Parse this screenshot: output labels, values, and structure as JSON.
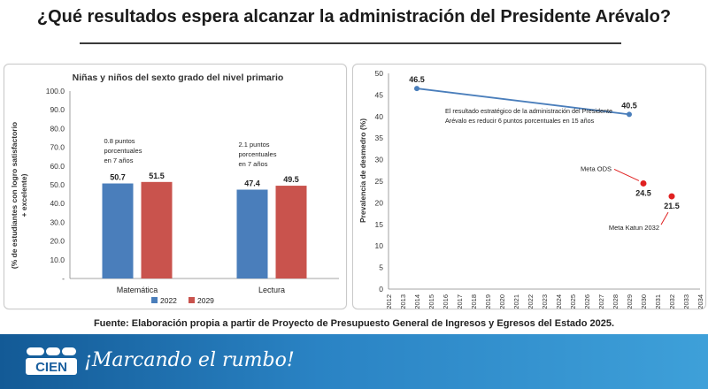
{
  "page": {
    "title": "¿Qué resultados espera alcanzar la administración del Presidente Arévalo?"
  },
  "source": "Fuente: Elaboración propia a partir de Proyecto de Presupuesto General de Ingresos y Egresos del Estado 2025.",
  "footer": {
    "logo_text": "CIEN",
    "slogan": "¡Marcando el rumbo!"
  },
  "chart_data": [
    {
      "type": "bar",
      "title": "Niñas y niños del sexto grado del nivel primario",
      "ylabel": "(% de estudiantes con logro satisfactorio + excelente)",
      "xlabel": "",
      "categories": [
        "Matemática",
        "Lectura"
      ],
      "series": [
        {
          "name": "2022",
          "color": "#4a7ebb",
          "values": [
            50.7,
            47.4
          ]
        },
        {
          "name": "2029",
          "color": "#c9534d",
          "values": [
            51.5,
            49.5
          ]
        }
      ],
      "ylim": [
        0,
        100
      ],
      "yticks": [
        "-",
        "10.0",
        "20.0",
        "30.0",
        "40.0",
        "50.0",
        "60.0",
        "70.0",
        "80.0",
        "90.0",
        "100.0"
      ],
      "annotations": [
        {
          "lines": [
            "0.8 puntos",
            "porcentuales",
            "en 7 años"
          ]
        },
        {
          "lines": [
            "2.1 puntos",
            "porcentuales",
            "en 7 años"
          ]
        }
      ],
      "legend": "bottom"
    },
    {
      "type": "line",
      "title": "",
      "ylabel": "Prevalencia de desmedro (%)",
      "xlabel": "",
      "xlim": [
        2012,
        2034
      ],
      "ylim": [
        0,
        50
      ],
      "xticks": [
        "2012",
        "2013",
        "2014",
        "2015",
        "2016",
        "2017",
        "2018",
        "2019",
        "2020",
        "2021",
        "2022",
        "2023",
        "2024",
        "2025",
        "2026",
        "2027",
        "2028",
        "2029",
        "2030",
        "2031",
        "2032",
        "2033",
        "2034"
      ],
      "yticks": [
        "0",
        "5",
        "10",
        "15",
        "20",
        "25",
        "30",
        "35",
        "40",
        "45",
        "50"
      ],
      "series": [
        {
          "name": "Meta administración",
          "color": "#4a7ebb",
          "points": [
            {
              "x": 2014,
              "y": 46.5,
              "label": "46.5"
            },
            {
              "x": 2029,
              "y": 40.5,
              "label": "40.5"
            }
          ]
        }
      ],
      "points": [
        {
          "name": "Meta ODS",
          "color": "#e02020",
          "x": 2030,
          "y": 24.5,
          "label": "24.5"
        },
        {
          "name": "Meta Katun 2032",
          "color": "#e02020",
          "x": 2032,
          "y": 21.5,
          "label": "21.5"
        }
      ],
      "annotations": [
        {
          "lines": [
            "El resultado estratégico de la administración del Presidente",
            "Arévalo es reducir 6 puntos porcentuales en 15 años"
          ]
        }
      ],
      "grid": false
    }
  ]
}
